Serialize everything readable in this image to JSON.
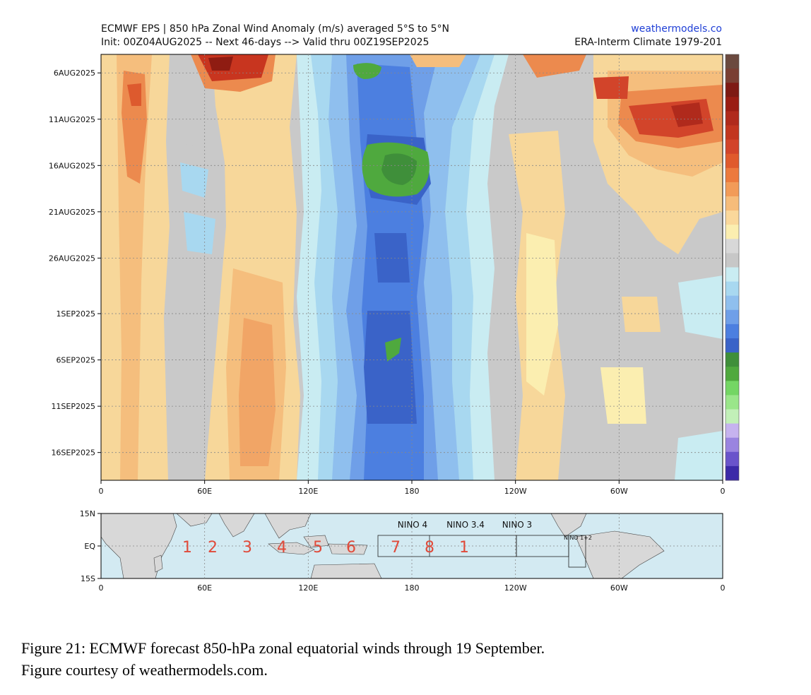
{
  "header": {
    "title_line1": "ECMWF EPS | 850 hPa Zonal Wind Anomaly (m/s) averaged 5°S to 5°N",
    "title_line2": "Init: 00Z04AUG2025 -- Next 46-days --> Valid thru 00Z19SEP2025",
    "site": "weathermodels.co",
    "climate": "ERA-Interm Climate 1979-201"
  },
  "chart_data": [
    {
      "type": "heatmap",
      "title": "ECMWF EPS | 850 hPa Zonal Wind Anomaly (m/s) averaged 5°S to 5°N",
      "x_ticks": [
        "0",
        "60E",
        "120E",
        "180",
        "120W",
        "60W",
        "0"
      ],
      "y_ticks": [
        "6AUG2025",
        "11AUG2025",
        "16AUG2025",
        "21AUG2025",
        "26AUG2025",
        "1SEP2025",
        "6SEP2025",
        "11SEP2025",
        "16SEP2025"
      ],
      "xlim": [
        0,
        360
      ],
      "ylim": [
        "04AUG2025",
        "19SEP2025"
      ],
      "grid": true,
      "colorbar_colors": [
        "#6b4a3f",
        "#7a3f33",
        "#7e1a14",
        "#9a1d14",
        "#b02a1c",
        "#c2351f",
        "#d2442a",
        "#e05a2c",
        "#ec7a3d",
        "#f29b58",
        "#f6bc7a",
        "#fad89b",
        "#fbeeb0",
        "#d8d8d8",
        "#c7c7c7",
        "#c9ecf2",
        "#a8d8f0",
        "#8fbfee",
        "#6f9fe8",
        "#4c7fe0",
        "#3a63c8",
        "#3f8f3a",
        "#4fa93e",
        "#74d664",
        "#9ae68a",
        "#c2f0b8",
        "#c6b3ef",
        "#9a84e0",
        "#6a54cb",
        "#3c2aa8"
      ],
      "green_maxima": [
        {
          "lon": 165,
          "date": "15AUG2025"
        },
        {
          "lon": 158,
          "date": "06AUG2025"
        },
        {
          "lon": 168,
          "date": "05SEP2025"
        }
      ]
    },
    {
      "type": "map",
      "y_ticks": [
        "15N",
        "EQ",
        "15S"
      ],
      "x_ticks": [
        "0",
        "60E",
        "120E",
        "180",
        "120W",
        "60W",
        "0"
      ],
      "region_labels": [
        "NINO 4",
        "NINO 3.4",
        "NINO 3",
        "NINO 1+2"
      ],
      "mjo_phase_labels": [
        "1",
        "2",
        "3",
        "4",
        "5",
        "6",
        "7",
        "8",
        "1"
      ],
      "phase_color": "#e04a3a",
      "ocean_color": "#d3eaf2",
      "land_color": "#d8d8d8"
    }
  ],
  "caption": {
    "line1": "Figure 21: ECMWF forecast 850-hPa zonal equatorial winds through 19 September.",
    "line2": "Figure courtesy of weathermodels.com."
  }
}
